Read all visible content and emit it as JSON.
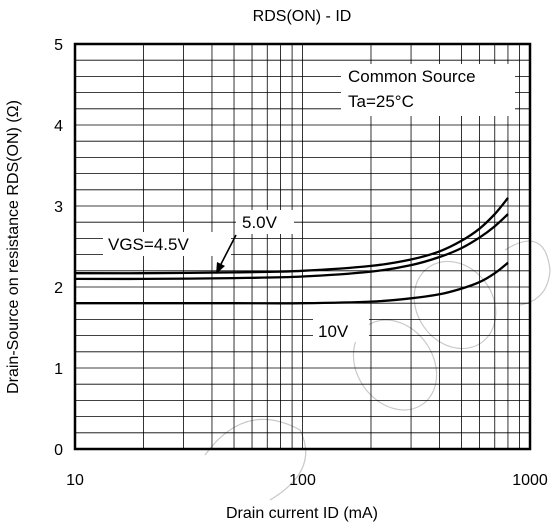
{
  "chart_data": {
    "type": "line",
    "title": "RDS(ON) - ID",
    "xlabel": "Drain current  ID (mA)",
    "ylabel": "Drain-Source on resistance RDS(ON) (Ω)",
    "xscale": "log",
    "xlim": [
      10,
      1000
    ],
    "ylim": [
      0,
      5
    ],
    "xticks": [
      "10",
      "100",
      "1000"
    ],
    "yticks": [
      "0",
      "1",
      "2",
      "3",
      "4",
      "5"
    ],
    "grid": true,
    "annotation": [
      "Common Source",
      "Ta=25°C"
    ],
    "series": [
      {
        "name": "VGS=4.5V",
        "x": [
          10,
          20,
          50,
          100,
          200,
          300,
          400,
          500,
          600,
          700,
          800
        ],
        "y": [
          2.17,
          2.17,
          2.18,
          2.2,
          2.26,
          2.34,
          2.44,
          2.57,
          2.72,
          2.9,
          3.1
        ]
      },
      {
        "name": "5.0V",
        "x": [
          10,
          20,
          50,
          100,
          200,
          300,
          400,
          500,
          600,
          700,
          800
        ],
        "y": [
          2.1,
          2.1,
          2.11,
          2.13,
          2.19,
          2.27,
          2.37,
          2.48,
          2.61,
          2.75,
          2.9
        ]
      },
      {
        "name": "10V",
        "x": [
          10,
          20,
          50,
          100,
          200,
          300,
          400,
          500,
          600,
          700,
          800
        ],
        "y": [
          1.8,
          1.8,
          1.8,
          1.8,
          1.82,
          1.86,
          1.91,
          1.98,
          2.06,
          2.17,
          2.3
        ]
      }
    ]
  }
}
